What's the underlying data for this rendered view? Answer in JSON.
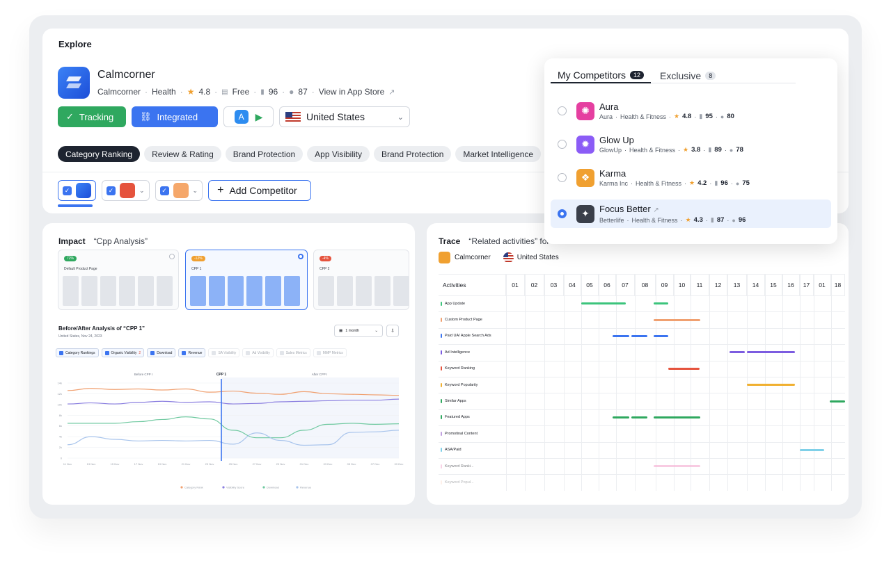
{
  "explore": {
    "title": "Explore",
    "app": {
      "name": "Calmcorner",
      "developer": "Calmcorner",
      "category": "Health",
      "rating": "4.8",
      "price": "Free",
      "rank_score": "96",
      "visibility_score": "87",
      "store_link": "View in App Store"
    },
    "buttons": {
      "tracking": "Tracking",
      "integrated": "Integrated",
      "country": "United States"
    },
    "tabs": [
      "Category Ranking",
      "Review & Rating",
      "Brand Protection",
      "App Visibility",
      "Brand Protection",
      "Market Intelligence"
    ],
    "add_competitor": "Add Competitor"
  },
  "popup": {
    "tab_competitors": "My Competitors",
    "tab_competitors_count": "12",
    "tab_exclusive": "Exclusive",
    "tab_exclusive_count": "8",
    "items": [
      {
        "name": "Aura",
        "developer": "Aura",
        "category": "Health & Fitness",
        "rating": "4.8",
        "rank": "95",
        "score": "80",
        "color": "#e53fa0"
      },
      {
        "name": "Glow Up",
        "developer": "GlowUp",
        "category": "Health & Fitness",
        "rating": "3.8",
        "rank": "89",
        "score": "78",
        "color": "#8b5cf6"
      },
      {
        "name": "Karma",
        "developer": "Karma Inc",
        "category": "Health & Fitness",
        "rating": "4.2",
        "rank": "96",
        "score": "75",
        "color": "#f0a030"
      },
      {
        "name": "Focus Better",
        "developer": "Betterlife",
        "category": "Health & Fitness",
        "rating": "4.3",
        "rank": "87",
        "score": "96",
        "color": "#3a3f4a"
      }
    ]
  },
  "impact": {
    "title": "Impact",
    "subtitle": "“Cpp Analysis”",
    "cpps": [
      {
        "badge": "72%",
        "label": "Default Product Page",
        "badge_color": "#2fa85f"
      },
      {
        "badge": "-12%",
        "label": "CPP 1",
        "badge_color": "#f0a030"
      },
      {
        "badge": "-4%",
        "label": "CPP 2",
        "badge_color": "#e5533d"
      }
    ],
    "ba_title": "Before/After Analysis of  “CPP 1”",
    "ba_sub": "United States, Nov 24, 2023",
    "period": "1 month",
    "filters": [
      {
        "label": "Category Rankings",
        "on": true
      },
      {
        "label": "Organic Visibility",
        "on": true,
        "badge": "2"
      },
      {
        "label": "Download",
        "on": true
      },
      {
        "label": "Revenue",
        "on": true
      },
      {
        "label": "SA Visibility",
        "on": false
      },
      {
        "label": "Ad Visibility",
        "on": false
      },
      {
        "label": "Sales Metrics",
        "on": false
      },
      {
        "label": "MMP Metrics",
        "on": false
      }
    ],
    "chart_labels": {
      "before": "Before CPP I",
      "marker": "CPP 1",
      "after": "After CPP I"
    }
  },
  "chart_data": {
    "type": "line",
    "x": [
      "11 Nov",
      "13 Nov",
      "15 Nov",
      "17 Nov",
      "19 Nov",
      "21 Nov",
      "23 Nov",
      "25 Nov",
      "27 Nov",
      "29 Nov",
      "01 Dec",
      "03 Dec",
      "05 Dec",
      "07 Dec",
      "09 Dec"
    ],
    "y_ticks": [
      "14k",
      "12k",
      "10k",
      "8k",
      "6k",
      "4k",
      "2k",
      "0"
    ],
    "ylim": [
      0,
      14000
    ],
    "marker_x": "24 Nov",
    "series": [
      {
        "name": "Category Rank",
        "color": "#f0a070",
        "values": [
          12600,
          13000,
          12800,
          12900,
          12700,
          12900,
          12300,
          12500,
          12100,
          11900,
          12400,
          12000,
          11900,
          11800,
          11700
        ]
      },
      {
        "name": "Visibility Score",
        "color": "#8b7fe0",
        "values": [
          10100,
          10300,
          10100,
          10400,
          10600,
          10400,
          10500,
          10100,
          10200,
          10500,
          10600,
          10700,
          10800,
          10800,
          11000
        ]
      },
      {
        "name": "Download",
        "color": "#6fc9a0",
        "values": [
          6500,
          6500,
          6500,
          6800,
          7200,
          7700,
          7300,
          5200,
          3800,
          3800,
          5200,
          6300,
          6500,
          6300,
          6400
        ]
      },
      {
        "name": "Revenue",
        "color": "#a8c4ec",
        "values": [
          2500,
          4000,
          3500,
          3200,
          3300,
          3200,
          3300,
          2600,
          4700,
          3300,
          2400,
          2500,
          4800,
          4900,
          5200
        ]
      }
    ],
    "legend": [
      "Category Rank",
      "Visibility Score",
      "Download",
      "Revenue"
    ]
  },
  "trace": {
    "title": "Trace",
    "subtitle": "“Related activities” for",
    "app": "Calmcorner",
    "country": "United States",
    "header_label": "Activities",
    "days": [
      "01",
      "02",
      "03",
      "04",
      "05",
      "06",
      "07",
      "08",
      "09",
      "10",
      "11",
      "12",
      "13",
      "14",
      "15",
      "16",
      "17",
      "01",
      "18"
    ],
    "rows": [
      {
        "label": "App Update",
        "color": "#3cc47c",
        "spans": [
          [
            4,
            6.5
          ],
          [
            7.9,
            8.7
          ]
        ]
      },
      {
        "label": "Custom Product Page",
        "color": "#f0a070",
        "spans": [
          [
            7.9,
            10.5
          ]
        ]
      },
      {
        "label": "Paid UA/ Apple Search Ads",
        "color": "#3b74f0",
        "spans": [
          [
            5.8,
            6.7
          ],
          [
            6.8,
            7.6
          ],
          [
            7.9,
            8.7
          ]
        ]
      },
      {
        "label": "Ad Intelligence",
        "color": "#7c5ce0",
        "spans": [
          [
            12.1,
            12.9
          ],
          [
            13,
            15.7
          ]
        ]
      },
      {
        "label": "Keyword Ranking",
        "color": "#e5533d",
        "spans": [
          [
            8.7,
            10.5
          ]
        ]
      },
      {
        "label": "Keyword Popularity",
        "color": "#f0b030",
        "spans": [
          [
            13,
            15.7
          ]
        ]
      },
      {
        "label": "Similar Apps",
        "color": "#2fa85f",
        "spans": [
          [
            17.9,
            19
          ]
        ]
      },
      {
        "label": "Featured Apps",
        "color": "#2fa85f",
        "spans": [
          [
            5.8,
            6.7
          ],
          [
            6.8,
            7.6
          ],
          [
            7.9,
            10.5
          ]
        ]
      },
      {
        "label": "Promotinal Content",
        "color": "#c0a0e0",
        "spans": []
      },
      {
        "label": "ASA/Paid",
        "color": "#7fd0e8",
        "spans": [
          [
            16,
            17.6
          ]
        ]
      },
      {
        "label": "Keyword Ranki...",
        "color": "#f5b5d5",
        "spans": [
          [
            7.9,
            10.5
          ]
        ]
      },
      {
        "label": "Keyword Popul...",
        "color": "#fcd5c0",
        "spans": []
      }
    ]
  }
}
